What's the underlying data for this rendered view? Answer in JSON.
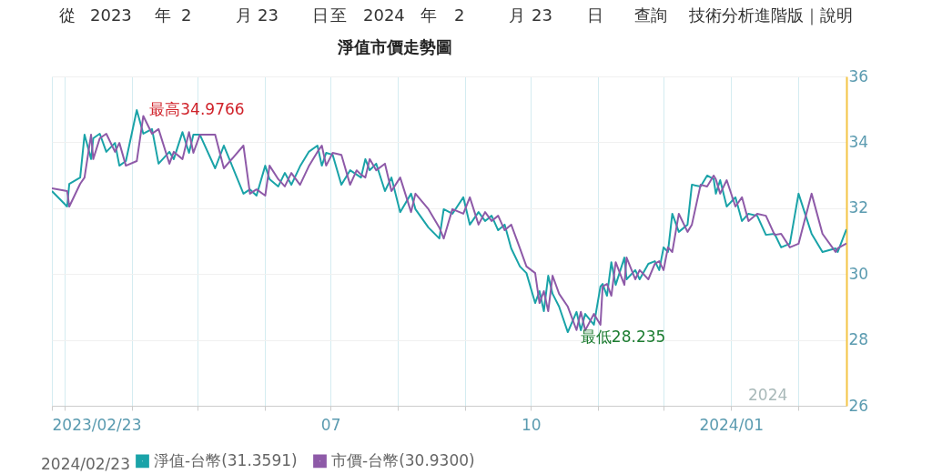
{
  "chart_data": {
    "type": "line",
    "title": "淨值市價走勢圖",
    "x": [
      "2023-02-23",
      "2023-03-02",
      "2023-03-03",
      "2023-03-08",
      "2023-03-10",
      "2023-03-13",
      "2023-03-14",
      "2023-03-17",
      "2023-03-20",
      "2023-03-24",
      "2023-03-26",
      "2023-03-29",
      "2023-04-03",
      "2023-04-06",
      "2023-04-10",
      "2023-04-13",
      "2023-04-18",
      "2023-04-20",
      "2023-04-24",
      "2023-04-27",
      "2023-04-29",
      "2023-05-02",
      "2023-05-09",
      "2023-05-13",
      "2023-05-22",
      "2023-05-25",
      "2023-05-28",
      "2023-06-01",
      "2023-06-03",
      "2023-06-07",
      "2023-06-10",
      "2023-06-13",
      "2023-06-17",
      "2023-06-21",
      "2023-06-25",
      "2023-06-27",
      "2023-06-29",
      "2023-07-02",
      "2023-07-06",
      "2023-07-10",
      "2023-07-13",
      "2023-07-15",
      "2023-07-17",
      "2023-07-19",
      "2023-07-22",
      "2023-07-26",
      "2023-07-29",
      "2023-08-02",
      "2023-08-07",
      "2023-08-09",
      "2023-08-15",
      "2023-08-20",
      "2023-08-22",
      "2023-08-26",
      "2023-08-31",
      "2023-09-03",
      "2023-09-07",
      "2023-09-10",
      "2023-09-13",
      "2023-09-16",
      "2023-09-19",
      "2023-09-22",
      "2023-09-26",
      "2023-09-29",
      "2023-10-03",
      "2023-10-05",
      "2023-10-07",
      "2023-10-09",
      "2023-10-11",
      "2023-10-14",
      "2023-10-18",
      "2023-10-22",
      "2023-10-24",
      "2023-10-26",
      "2023-10-30",
      "2023-11-02",
      "2023-11-03",
      "2023-11-05",
      "2023-11-07",
      "2023-11-09",
      "2023-11-13",
      "2023-11-14",
      "2023-11-18",
      "2023-11-20",
      "2023-11-24",
      "2023-11-27",
      "2023-11-29",
      "2023-12-01",
      "2023-12-03",
      "2023-12-05",
      "2023-12-08",
      "2023-12-12",
      "2023-12-14",
      "2023-12-18",
      "2023-12-21",
      "2023-12-24",
      "2023-12-25",
      "2023-12-27",
      "2023-12-30",
      "2024-01-03",
      "2024-01-06",
      "2024-01-09",
      "2024-01-13",
      "2024-01-17",
      "2024-01-21",
      "2024-01-24",
      "2024-01-28",
      "2024-02-01",
      "2024-02-07",
      "2024-02-12",
      "2024-02-18",
      "2024-02-19",
      "2024-02-23"
    ],
    "series": [
      {
        "name": "淨值-台幣(31.3591)",
        "color": "#1aa3a8",
        "values": [
          32.52,
          32.05,
          32.74,
          32.93,
          34.23,
          33.49,
          34.12,
          34.26,
          33.71,
          33.98,
          33.29,
          33.43,
          34.9766,
          34.26,
          34.4,
          33.35,
          33.71,
          33.49,
          34.31,
          33.68,
          34.23,
          34.23,
          33.21,
          33.9,
          32.44,
          32.57,
          32.38,
          33.29,
          32.88,
          32.66,
          33.07,
          32.71,
          33.27,
          33.71,
          33.9,
          33.29,
          33.68,
          33.62,
          32.71,
          33.15,
          33.02,
          32.93,
          33.49,
          33.15,
          33.35,
          32.52,
          32.93,
          31.88,
          32.44,
          31.97,
          31.41,
          31.08,
          31.97,
          31.83,
          32.33,
          31.5,
          31.88,
          31.61,
          31.77,
          31.33,
          31.5,
          30.78,
          30.23,
          30.03,
          29.12,
          29.48,
          28.87,
          29.95,
          29.4,
          29.01,
          28.235,
          28.85,
          28.29,
          28.79,
          28.46,
          29.62,
          29.7,
          29.34,
          30.36,
          29.67,
          30.5,
          29.84,
          30.12,
          29.84,
          30.31,
          30.39,
          30.12,
          30.81,
          30.67,
          31.83,
          31.28,
          31.5,
          32.71,
          32.66,
          32.99,
          32.88,
          32.44,
          32.85,
          32.05,
          32.33,
          31.61,
          31.83,
          31.77,
          31.19,
          31.22,
          30.81,
          30.92,
          32.44,
          31.22,
          30.67,
          30.78,
          30.67,
          31.3591
        ]
      },
      {
        "name": "市價-台幣(30.9300)",
        "color": "#8e5aa8",
        "values": [
          32.6,
          32.52,
          32.05,
          32.74,
          32.93,
          34.23,
          33.49,
          34.12,
          34.26,
          33.71,
          33.98,
          33.29,
          33.43,
          34.8,
          34.26,
          34.4,
          33.35,
          33.71,
          33.49,
          34.31,
          33.68,
          34.23,
          34.23,
          33.21,
          33.9,
          32.44,
          32.57,
          32.38,
          33.29,
          32.88,
          32.66,
          33.07,
          32.71,
          33.27,
          33.71,
          33.9,
          33.29,
          33.68,
          33.62,
          32.71,
          33.15,
          33.02,
          32.93,
          33.49,
          33.15,
          33.35,
          32.52,
          32.93,
          31.88,
          32.44,
          31.97,
          31.41,
          31.08,
          31.97,
          31.83,
          32.33,
          31.5,
          31.88,
          31.61,
          31.77,
          31.33,
          31.5,
          30.78,
          30.23,
          30.03,
          29.12,
          29.48,
          28.87,
          29.95,
          29.4,
          29.01,
          28.3,
          28.85,
          28.29,
          28.79,
          28.46,
          29.62,
          29.7,
          29.34,
          30.36,
          29.67,
          30.5,
          29.84,
          30.12,
          29.84,
          30.31,
          30.39,
          30.12,
          30.81,
          30.67,
          31.83,
          31.28,
          31.5,
          32.71,
          32.66,
          32.99,
          32.88,
          32.44,
          32.85,
          32.05,
          32.33,
          31.61,
          31.83,
          31.77,
          31.19,
          31.22,
          30.81,
          30.92,
          32.44,
          31.22,
          30.67,
          30.78,
          30.93
        ]
      }
    ],
    "xlim": [
      "2023-02-23",
      "2024-02-23"
    ],
    "xticks": [
      {
        "value": "2023-02-23",
        "label": "2023/02/23"
      },
      {
        "value": "2023-03-01",
        "label": null
      },
      {
        "value": "2023-04-01",
        "label": null
      },
      {
        "value": "2023-05-01",
        "label": null
      },
      {
        "value": "2023-06-01",
        "label": null
      },
      {
        "value": "2023-07-01",
        "label": "07"
      },
      {
        "value": "2023-08-01",
        "label": null
      },
      {
        "value": "2023-09-01",
        "label": null
      },
      {
        "value": "2023-10-01",
        "label": "10"
      },
      {
        "value": "2023-11-01",
        "label": null
      },
      {
        "value": "2023-12-01",
        "label": null
      },
      {
        "value": "2024-01-01",
        "label": "2024/01"
      },
      {
        "value": "2024-02-01",
        "label": null
      }
    ],
    "ylim": [
      26,
      36
    ],
    "yticks": [
      26,
      28,
      30,
      32,
      34,
      36
    ],
    "grid": true,
    "legend": "bottom left",
    "legend_title": "2024/02/23",
    "annotations": [
      {
        "text": "最高34.9766",
        "x": "2023-04-03",
        "y": 34.9766
      },
      {
        "text": "最低28.235",
        "x": "2023-10-18",
        "y": 28.235
      },
      "2024",
      "從",
      "2023",
      "年",
      "2",
      "月",
      "23",
      "日",
      "至",
      "2024",
      "年",
      "2",
      "月",
      "23",
      "日",
      "查詢",
      "技術分析進階版｜說明"
    ]
  }
}
